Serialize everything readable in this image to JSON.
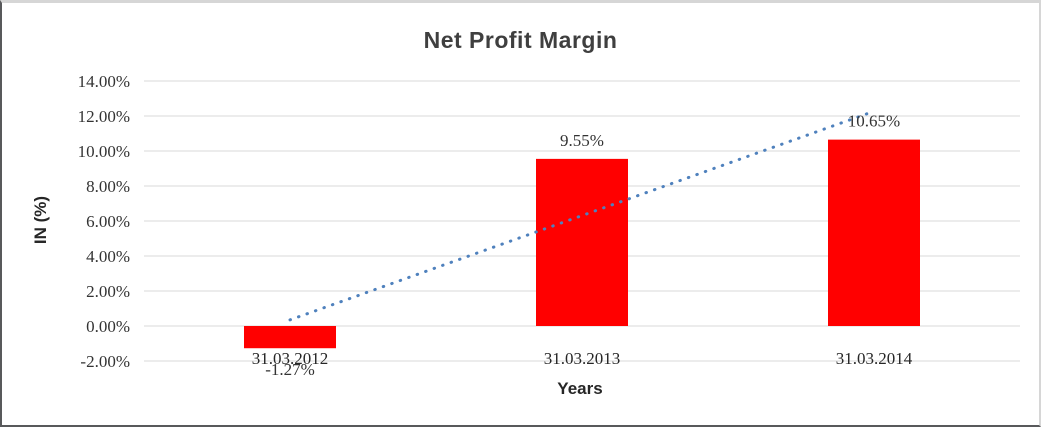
{
  "frame": {
    "background": "#ffffff",
    "border_dark": "#58595b",
    "border_light": "#d6d6d6"
  },
  "chart_data": {
    "type": "bar",
    "title": "Net Profit Margin",
    "xlabel": "Years",
    "ylabel": "IN (%)",
    "categories": [
      "31.03.2012",
      "31.03.2013",
      "31.03.2014"
    ],
    "values": [
      -1.27,
      9.55,
      10.65
    ],
    "data_labels": [
      "-1.27%",
      "9.55%",
      "10.65%"
    ],
    "ylim": [
      -2,
      14
    ],
    "ytick_values": [
      14,
      12,
      10,
      8,
      6,
      4,
      2,
      0,
      -2
    ],
    "ytick_labels": [
      "14.00%",
      "12.00%",
      "10.00%",
      "8.00%",
      "6.00%",
      "4.00%",
      "2.00%",
      "0.00%",
      "-2.00%"
    ],
    "grid": true,
    "legend_position": "none",
    "colors": {
      "bar": "#ff0000",
      "gridline": "#d9d9d9",
      "trendline": "#4f81bd",
      "title_text": "#3f3f3f",
      "axis_title_text": "#262626",
      "tick_text": "#333333"
    },
    "trendline": {
      "type": "linear",
      "style": "dotted",
      "start_value": 0.35,
      "end_value": 12.27
    }
  }
}
